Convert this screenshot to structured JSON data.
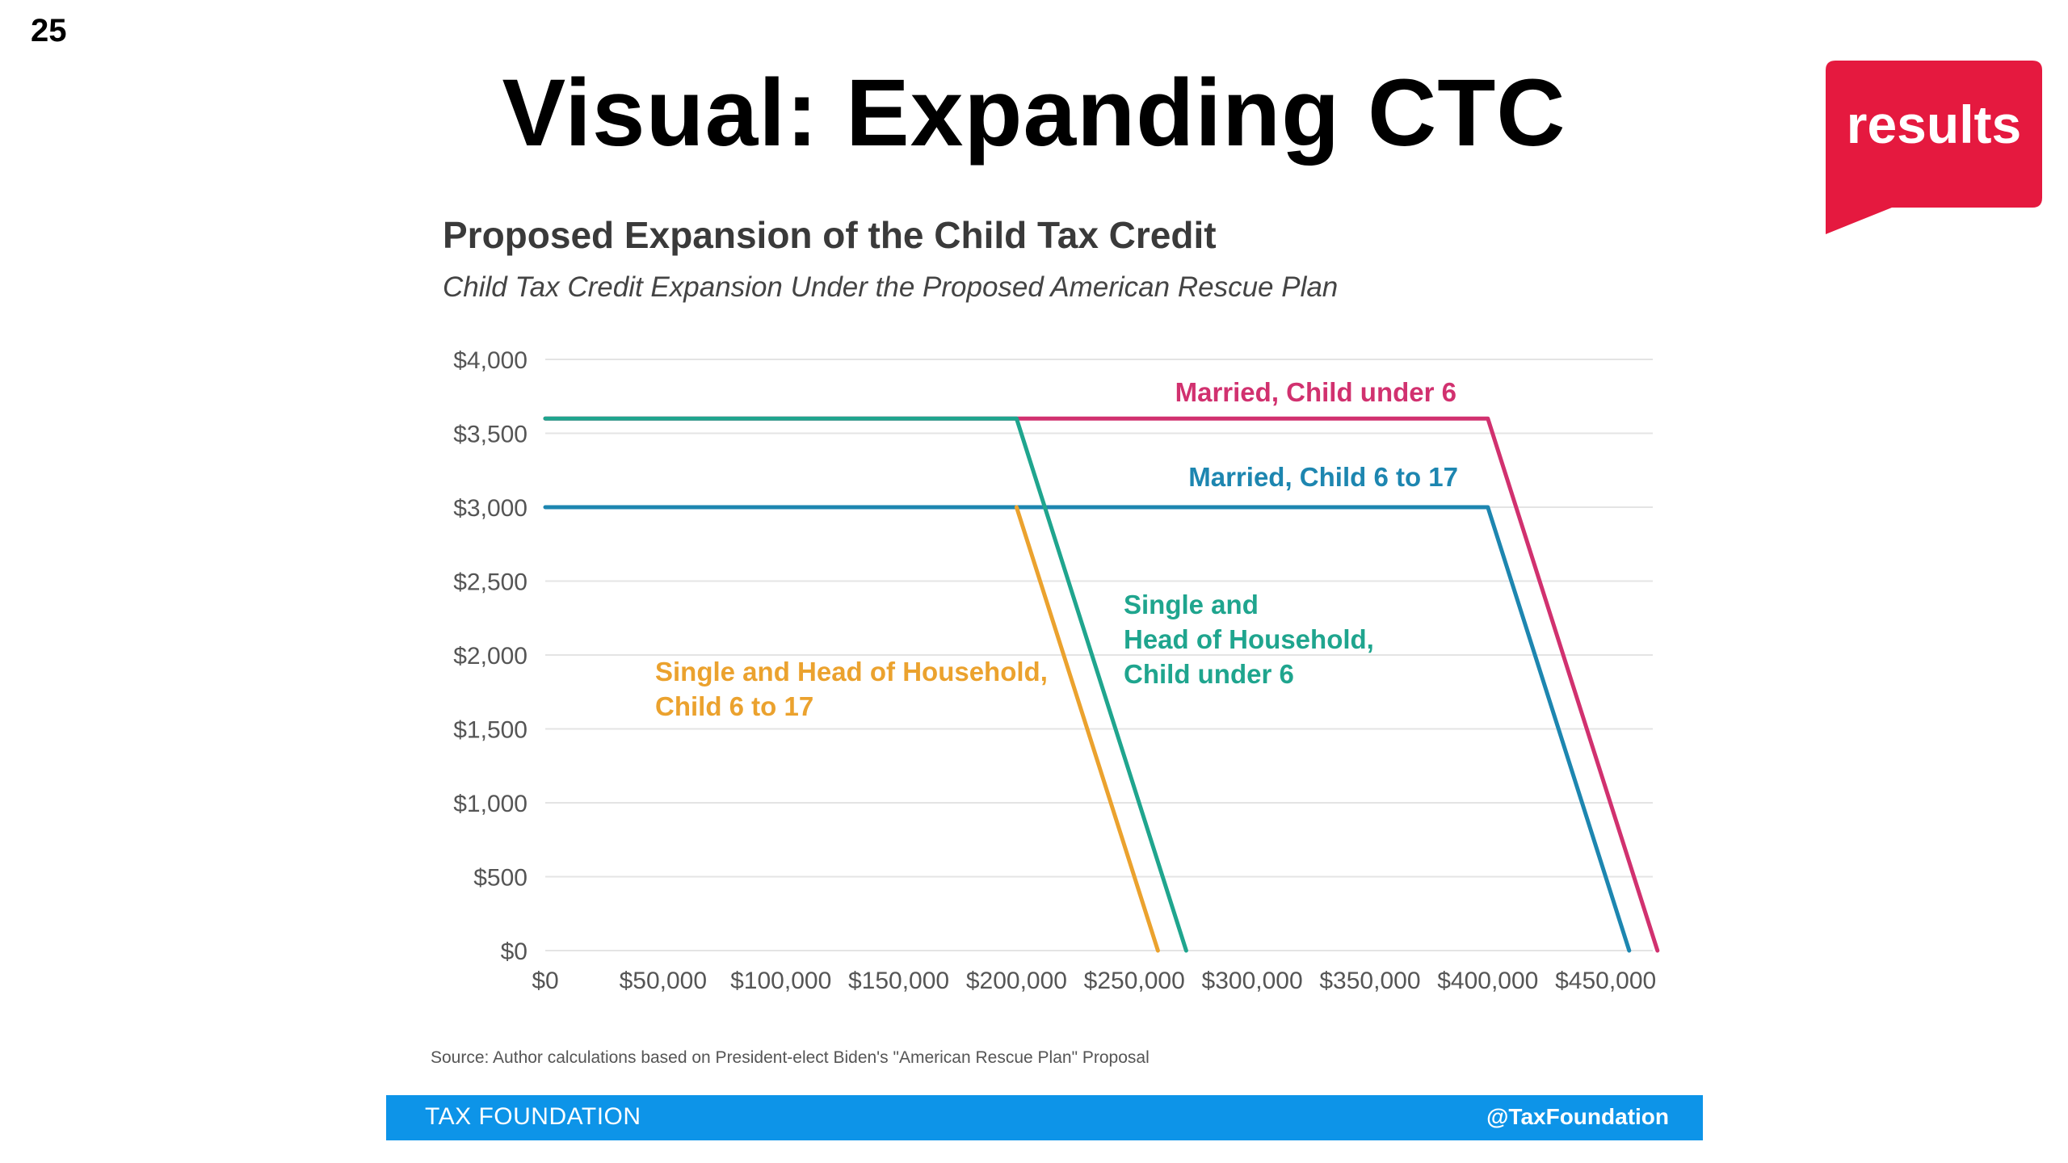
{
  "slide": {
    "number": "25",
    "title": "Visual: Expanding CTC",
    "logo_text": "results",
    "logo_color": "#e5193f"
  },
  "footer": {
    "left": "TAX FOUNDATION",
    "right": "@TaxFoundation",
    "color": "#0d94e8"
  },
  "chart_data": {
    "type": "line",
    "title": "Proposed Expansion of the Child Tax Credit",
    "subtitle": "Child Tax Credit Expansion Under the Proposed American Rescue Plan",
    "source": "Source: Author calculations based on President-elect Biden's \"American Rescue Plan\" Proposal",
    "xlabel": "",
    "ylabel": "",
    "xlim": [
      0,
      470000
    ],
    "ylim": [
      0,
      4000
    ],
    "x_ticks": [
      0,
      50000,
      100000,
      150000,
      200000,
      250000,
      300000,
      350000,
      400000,
      450000
    ],
    "x_tick_labels": [
      "$0",
      "$50,000",
      "$100,000",
      "$150,000",
      "$200,000",
      "$250,000",
      "$300,000",
      "$350,000",
      "$400,000",
      "$450,000"
    ],
    "y_ticks": [
      0,
      500,
      1000,
      1500,
      2000,
      2500,
      3000,
      3500,
      4000
    ],
    "y_tick_labels": [
      "$0",
      "$500",
      "$1,000",
      "$1,500",
      "$2,000",
      "$2,500",
      "$3,000",
      "$3,500",
      "$4,000"
    ],
    "grid": true,
    "series": [
      {
        "name": "Married,  Child under 6",
        "label_lines": [
          "Married,  Child under 6"
        ],
        "color": "#d1316f",
        "points": [
          [
            0,
            3600
          ],
          [
            400000,
            3600
          ],
          [
            472000,
            0
          ]
        ]
      },
      {
        "name": "Married, Child 6 to 17",
        "label_lines": [
          "Married, Child 6 to 17"
        ],
        "color": "#1d86b0",
        "points": [
          [
            0,
            3000
          ],
          [
            400000,
            3000
          ],
          [
            460000,
            0
          ]
        ]
      },
      {
        "name": "Single and Head of Household, Child under 6",
        "label_lines": [
          "Single and",
          "Head of Household,",
          "Child under 6"
        ],
        "color": "#1fa58e",
        "points": [
          [
            0,
            3600
          ],
          [
            200000,
            3600
          ],
          [
            272000,
            0
          ]
        ]
      },
      {
        "name": "Single and Head of Household, Child 6 to 17",
        "label_lines": [
          "Single and Head of Household,",
          "Child 6 to 17"
        ],
        "color": "#eba22e",
        "points": [
          [
            200000,
            3000
          ],
          [
            260000,
            0
          ]
        ]
      }
    ]
  }
}
